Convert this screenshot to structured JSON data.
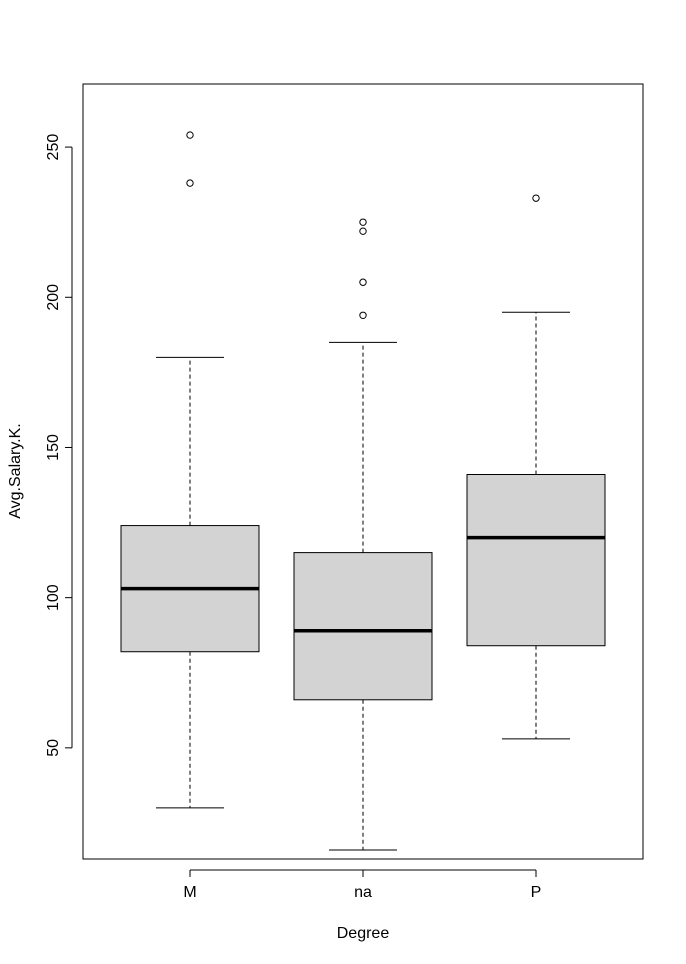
{
  "chart_data": {
    "type": "boxplot",
    "title": "",
    "xlabel": "Degree",
    "ylabel": "Avg.Salary.K.",
    "categories": [
      "M",
      "na",
      "P"
    ],
    "ylim": [
      13,
      271
    ],
    "yticks": [
      50,
      100,
      150,
      200,
      250
    ],
    "grid": false,
    "legend": "none",
    "box_fill": "#d3d3d3",
    "boxes": [
      {
        "category": "M",
        "whisker_low": 30,
        "q1": 82,
        "median": 103,
        "q3": 124,
        "whisker_high": 180,
        "outliers": [
          238,
          254
        ]
      },
      {
        "category": "na",
        "whisker_low": 16,
        "q1": 66,
        "median": 89,
        "q3": 115,
        "whisker_high": 185,
        "outliers": [
          194,
          205,
          222,
          225
        ]
      },
      {
        "category": "P",
        "whisker_low": 53,
        "q1": 84,
        "median": 120,
        "q3": 141,
        "whisker_high": 195,
        "outliers": [
          233
        ]
      }
    ]
  }
}
